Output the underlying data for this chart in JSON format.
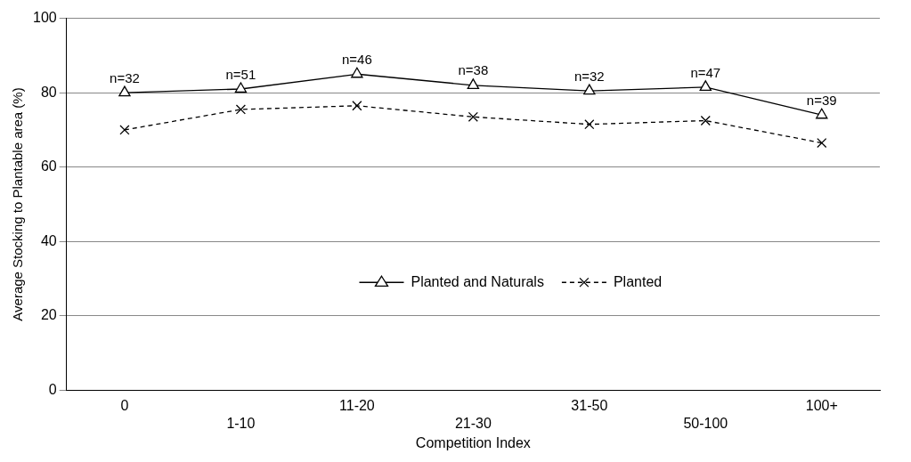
{
  "chart_data": {
    "type": "line",
    "xlabel": "Competition Index",
    "ylabel": "Average Stocking to Plantable area (%)",
    "categories": [
      "0",
      "1-10",
      "11-20",
      "21-30",
      "31-50",
      "50-100",
      "100+"
    ],
    "series": [
      {
        "name": "Planted and Naturals",
        "color": "#000000",
        "values": [
          80,
          81,
          85,
          82,
          80.5,
          81.5,
          74
        ],
        "marker": "triangle",
        "line_style": "solid"
      },
      {
        "name": "Planted",
        "color": "#000000",
        "values": [
          70,
          75.5,
          76.5,
          73.5,
          71.5,
          72.5,
          66.5
        ],
        "marker": "cross",
        "line_style": "dashed"
      }
    ],
    "annotations": [
      {
        "text": "n=32",
        "x": "0",
        "y": 80
      },
      {
        "text": "n=51",
        "x": "1-10",
        "y": 81
      },
      {
        "text": "n=46",
        "x": "11-20",
        "y": 85
      },
      {
        "text": "n=38",
        "x": "21-30",
        "y": 82
      },
      {
        "text": "n=32",
        "x": "31-50",
        "y": 80.5
      },
      {
        "text": "n=47",
        "x": "50-100",
        "y": 81.5
      },
      {
        "text": "n=39",
        "x": "100+",
        "y": 74
      }
    ],
    "ylim": [
      0,
      100
    ],
    "yticks": [
      0,
      20,
      40,
      60,
      80,
      100
    ],
    "grid": "y",
    "legend": "center"
  }
}
